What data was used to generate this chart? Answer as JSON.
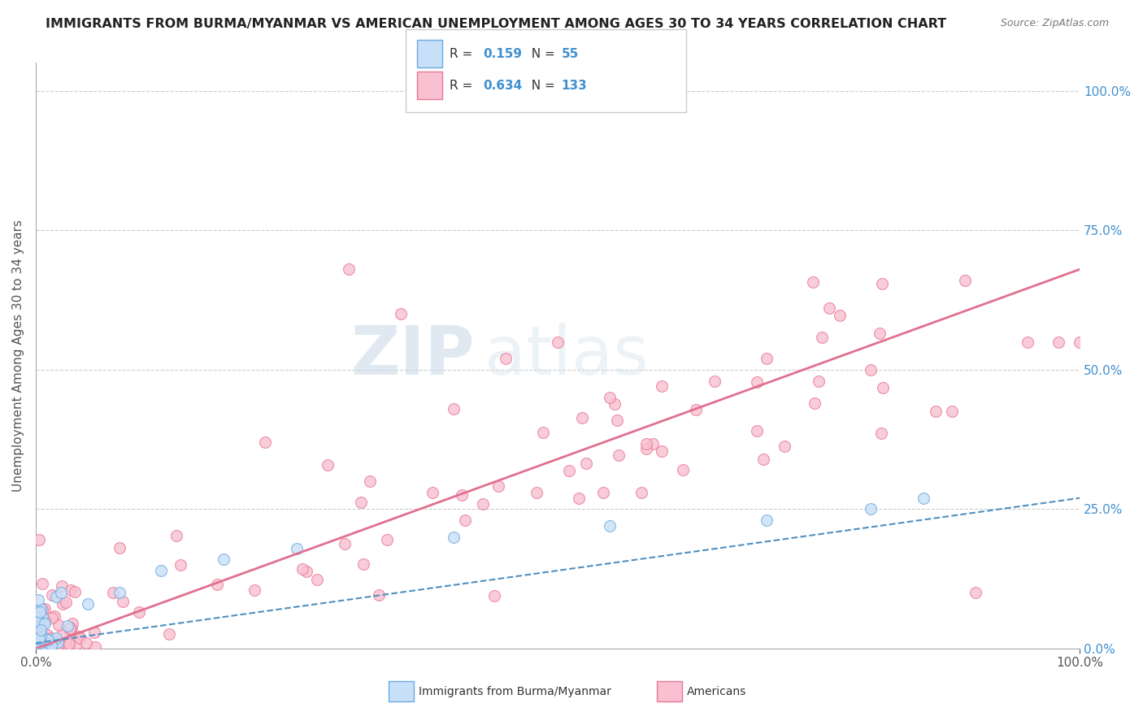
{
  "title": "IMMIGRANTS FROM BURMA/MYANMAR VS AMERICAN UNEMPLOYMENT AMONG AGES 30 TO 34 YEARS CORRELATION CHART",
  "source": "Source: ZipAtlas.com",
  "ylabel": "Unemployment Among Ages 30 to 34 years",
  "r_blue": 0.159,
  "n_blue": 55,
  "r_pink": 0.634,
  "n_pink": 133,
  "blue_face_color": "#c8dff8",
  "blue_edge_color": "#6aaae0",
  "pink_face_color": "#f8c0d0",
  "pink_edge_color": "#e87898",
  "blue_line_color": "#5090c0",
  "pink_line_color": "#e07090",
  "watermark_zip": "ZIP",
  "watermark_atlas": "atlas",
  "legend_labels": [
    "Immigrants from Burma/Myanmar",
    "Americans"
  ],
  "ytick_labels": [
    "0.0%",
    "25.0%",
    "50.0%",
    "75.0%",
    "100.0%"
  ],
  "ytick_values": [
    0,
    25,
    50,
    75,
    100
  ],
  "xtick_labels": [
    "0.0%",
    "100.0%"
  ],
  "xtick_values": [
    0,
    100
  ],
  "xlim": [
    0,
    100
  ],
  "ylim": [
    0,
    105
  ],
  "pink_trend_x0": 0,
  "pink_trend_y0": 0,
  "pink_trend_x1": 100,
  "pink_trend_y1": 68,
  "blue_trend_x0": 0,
  "blue_trend_y0": 1,
  "blue_trend_x1": 100,
  "blue_trend_y1": 27
}
